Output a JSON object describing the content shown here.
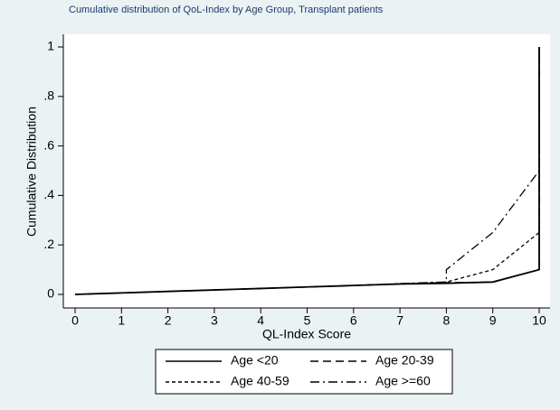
{
  "chart_data": {
    "type": "line",
    "title": "Cumulative distribution of QoL-Index by Age Group, Transplant patients",
    "x_label": "QL-Index Score",
    "y_label": "Cumulative Distribution",
    "x": [
      0,
      1,
      2,
      3,
      4,
      5,
      6,
      7,
      8,
      8,
      9,
      10,
      10
    ],
    "series": [
      {
        "name": "Age <20",
        "color": "#000000",
        "dash": "solid",
        "values": [
          0,
          0.006,
          0.012,
          0.018,
          0.024,
          0.03,
          0.036,
          0.042,
          0.045,
          0.045,
          0.05,
          0.1,
          1
        ]
      },
      {
        "name": "Age 20-39",
        "color": "#000000",
        "dash": "long",
        "values": [
          0,
          0.006,
          0.012,
          0.018,
          0.024,
          0.03,
          0.036,
          0.042,
          0.048,
          0.048,
          0.05,
          0.1,
          1
        ]
      },
      {
        "name": "Age 40-59",
        "color": "#000000",
        "dash": "short",
        "values": [
          0,
          0.006,
          0.012,
          0.018,
          0.024,
          0.03,
          0.036,
          0.043,
          0.05,
          0.05,
          0.1,
          0.25,
          1
        ]
      },
      {
        "name": "Age >=60",
        "color": "#000000",
        "dash": "dashdot",
        "values": [
          0,
          0.006,
          0.012,
          0.018,
          0.024,
          0.03,
          0.036,
          0.044,
          0.05,
          0.1,
          0.25,
          0.5,
          1
        ]
      }
    ],
    "xlim": [
      0,
      10
    ],
    "xticks": [
      0,
      1,
      2,
      3,
      4,
      5,
      6,
      7,
      8,
      9,
      10
    ],
    "ylim": [
      0,
      1
    ],
    "yticks": [
      0,
      {
        "value": 0.2,
        "label": ".2"
      },
      {
        "value": 0.4,
        "label": ".4"
      },
      {
        "value": 0.6,
        "label": ".6"
      },
      {
        "value": 0.8,
        "label": ".8"
      },
      1
    ],
    "legend": "bottom"
  }
}
